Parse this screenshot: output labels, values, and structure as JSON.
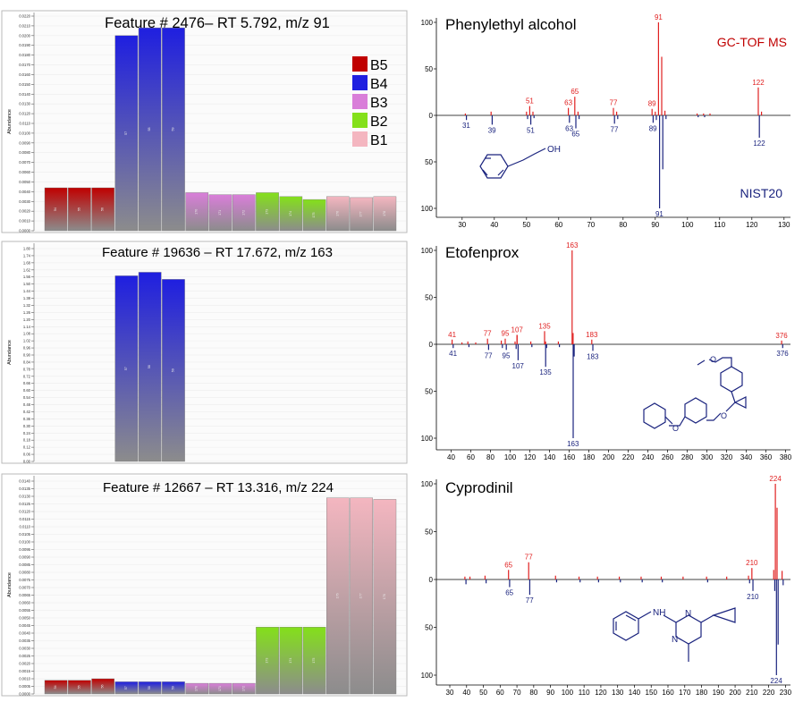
{
  "colors": {
    "B5": "#c00000",
    "B4": "#1f1fe0",
    "B3": "#d97ed9",
    "B2": "#84e01a",
    "B1": "#f4b6c0",
    "bar_bottom": "#8c8c8c",
    "gc_tof": "#e02020",
    "nist": "#1a237e",
    "structure": "#1a237e"
  },
  "legend": {
    "items": [
      {
        "name": "B5",
        "color": "#c00000"
      },
      {
        "name": "B4",
        "color": "#1f1fe0"
      },
      {
        "name": "B3",
        "color": "#d97ed9"
      },
      {
        "name": "B2",
        "color": "#84e01a"
      },
      {
        "name": "B1",
        "color": "#f4b6c0"
      }
    ]
  },
  "chart_data": [
    {
      "type": "bar",
      "title": "Feature # 2476– RT 5.792, m/z 91",
      "ylabel": "Abundance",
      "ylim": [
        0,
        0.022
      ],
      "ytick_step": 0.001,
      "ytick_decimals": 4,
      "groups": [
        "B5",
        "B5",
        "B5",
        "B4",
        "B4",
        "B4",
        "B3",
        "B3",
        "B3",
        "B2",
        "B2",
        "B2",
        "B1",
        "B1",
        "B1"
      ],
      "bar_labels": [
        "54",
        "55",
        "56",
        "57",
        "58",
        "59",
        "170",
        "171",
        "172",
        "173",
        "174",
        "175",
        "176",
        "177",
        "178"
      ],
      "values": [
        0.0044,
        0.0044,
        0.0044,
        0.02,
        0.0208,
        0.0208,
        0.0039,
        0.0037,
        0.0037,
        0.0039,
        0.0035,
        0.0032,
        0.0035,
        0.0034,
        0.0035
      ]
    },
    {
      "type": "bar",
      "title": "Feature # 19636 – RT 17.672, m/z 163",
      "ylabel": "Abundance",
      "ylim": [
        0,
        1.8
      ],
      "ytick_step": 0.06,
      "ytick_decimals": 2,
      "groups": [
        "B5",
        "B5",
        "B5",
        "B4",
        "B4",
        "B4",
        "B3",
        "B3",
        "B3",
        "B2",
        "B2",
        "B2",
        "B1",
        "B1",
        "B1"
      ],
      "bar_labels": [
        "54",
        "55",
        "56",
        "57",
        "58",
        "59",
        "170",
        "171",
        "172",
        "173",
        "174",
        "175",
        "176",
        "177",
        "178"
      ],
      "values": [
        0,
        0,
        0,
        1.57,
        1.6,
        1.54,
        0,
        0,
        0,
        0,
        0,
        0,
        0,
        0,
        0
      ]
    },
    {
      "type": "bar",
      "title": "Feature # 12667 – RT 13.316, m/z 224",
      "ylabel": "Abundance",
      "ylim": [
        0,
        0.014
      ],
      "ytick_step": 0.0005,
      "ytick_decimals": 4,
      "groups": [
        "B5",
        "B5",
        "B5",
        "B4",
        "B4",
        "B4",
        "B3",
        "B3",
        "B3",
        "B2",
        "B2",
        "B2",
        "B1",
        "B1",
        "B1"
      ],
      "bar_labels": [
        "54",
        "55",
        "56",
        "57",
        "58",
        "59",
        "170",
        "171",
        "172",
        "173",
        "174",
        "175",
        "176",
        "177",
        "178"
      ],
      "values": [
        0.0009,
        0.0009,
        0.001,
        0.0008,
        0.0008,
        0.0008,
        0.0007,
        0.0007,
        0.0007,
        0.0044,
        0.0044,
        0.0044,
        0.0129,
        0.0129,
        0.0128
      ]
    },
    {
      "type": "mirror_spectrum",
      "title": "Phenylethyl alcohol",
      "top_label": "GC-TOF MS",
      "bottom_label": "NIST20",
      "xlim": [
        22,
        132
      ],
      "xticks": [
        30,
        40,
        50,
        60,
        70,
        80,
        90,
        100,
        110,
        120,
        130
      ],
      "yticks": [
        100,
        50,
        0,
        50,
        100
      ],
      "top_peaks": [
        [
          91,
          100
        ],
        [
          92,
          63
        ],
        [
          122,
          30
        ],
        [
          65,
          20
        ],
        [
          51,
          10
        ],
        [
          63,
          8
        ],
        [
          77,
          8
        ],
        [
          89,
          7
        ],
        [
          39,
          4
        ],
        [
          31,
          2
        ],
        [
          50,
          4
        ],
        [
          52,
          4
        ],
        [
          66,
          4
        ],
        [
          78,
          4
        ],
        [
          90,
          4
        ],
        [
          93,
          5
        ],
        [
          123,
          4
        ],
        [
          103,
          2
        ],
        [
          105,
          2
        ],
        [
          107,
          2
        ]
      ],
      "bottom_peaks": [
        [
          91,
          100
        ],
        [
          92,
          58
        ],
        [
          122,
          24
        ],
        [
          65,
          14
        ],
        [
          51,
          10
        ],
        [
          63,
          8
        ],
        [
          77,
          9
        ],
        [
          89,
          8
        ],
        [
          39,
          10
        ],
        [
          31,
          5
        ],
        [
          50,
          4
        ],
        [
          52,
          3
        ],
        [
          66,
          4
        ],
        [
          78,
          4
        ],
        [
          90,
          5
        ],
        [
          93,
          4
        ],
        [
          103,
          2
        ],
        [
          105,
          2
        ]
      ],
      "top_labels": [
        "51",
        "63",
        "65",
        "77",
        "89",
        "91",
        "122"
      ],
      "bottom_labels": [
        "31",
        "39",
        "51",
        "63",
        "65",
        "77",
        "89",
        "91",
        "122"
      ]
    },
    {
      "type": "mirror_spectrum",
      "title": "Etofenprox",
      "xlim": [
        25,
        385
      ],
      "xticks": [
        40,
        60,
        80,
        100,
        120,
        140,
        160,
        180,
        200,
        220,
        240,
        260,
        280,
        300,
        320,
        340,
        360,
        380
      ],
      "yticks": [
        100,
        50,
        0,
        50,
        100
      ],
      "top_peaks": [
        [
          163,
          100
        ],
        [
          135,
          14
        ],
        [
          107,
          10
        ],
        [
          77,
          6
        ],
        [
          95,
          6
        ],
        [
          41,
          5
        ],
        [
          183,
          5
        ],
        [
          376,
          4
        ],
        [
          164,
          12
        ],
        [
          136,
          3
        ],
        [
          57,
          3
        ],
        [
          91,
          4
        ],
        [
          105,
          3
        ],
        [
          121,
          3
        ],
        [
          149,
          3
        ],
        [
          107,
          10
        ],
        [
          65,
          2
        ],
        [
          51,
          2
        ]
      ],
      "bottom_peaks": [
        [
          163,
          100
        ],
        [
          135,
          24
        ],
        [
          107,
          17
        ],
        [
          77,
          6
        ],
        [
          95,
          6
        ],
        [
          41,
          4
        ],
        [
          183,
          7
        ],
        [
          376,
          4
        ],
        [
          164,
          13
        ],
        [
          136,
          4
        ],
        [
          57,
          3
        ],
        [
          91,
          4
        ],
        [
          105,
          5
        ],
        [
          121,
          3
        ],
        [
          149,
          3
        ]
      ],
      "top_labels": [
        "41",
        "77",
        "95",
        "107",
        "135",
        "163",
        "183",
        "376"
      ],
      "bottom_labels": [
        "41",
        "77",
        "95",
        "107",
        "135",
        "163",
        "183",
        "376"
      ]
    },
    {
      "type": "mirror_spectrum",
      "title": "Cyprodinil",
      "xlim": [
        22,
        233
      ],
      "xticks": [
        30,
        40,
        50,
        60,
        70,
        80,
        90,
        100,
        110,
        120,
        130,
        140,
        150,
        160,
        170,
        180,
        190,
        200,
        210,
        220,
        230
      ],
      "yticks": [
        100,
        50,
        0,
        50,
        100
      ],
      "top_peaks": [
        [
          224,
          100
        ],
        [
          225,
          75
        ],
        [
          223,
          10
        ],
        [
          210,
          12
        ],
        [
          77,
          18
        ],
        [
          65,
          10
        ],
        [
          51,
          4
        ],
        [
          93,
          4
        ],
        [
          107,
          3
        ],
        [
          118,
          3
        ],
        [
          131,
          3
        ],
        [
          144,
          3
        ],
        [
          156,
          3
        ],
        [
          169,
          3
        ],
        [
          183,
          3
        ],
        [
          195,
          3
        ],
        [
          208,
          4
        ],
        [
          228,
          9
        ],
        [
          39,
          3
        ],
        [
          42,
          3
        ]
      ],
      "bottom_peaks": [
        [
          224,
          100
        ],
        [
          225,
          68
        ],
        [
          223,
          12
        ],
        [
          210,
          12
        ],
        [
          77,
          16
        ],
        [
          65,
          8
        ],
        [
          51,
          4
        ],
        [
          93,
          3
        ],
        [
          107,
          3
        ],
        [
          118,
          3
        ],
        [
          131,
          3
        ],
        [
          144,
          3
        ],
        [
          156,
          3
        ],
        [
          183,
          3
        ],
        [
          208,
          4
        ],
        [
          228,
          6
        ],
        [
          39,
          5
        ]
      ],
      "top_labels": [
        "65",
        "77",
        "210",
        "224"
      ],
      "bottom_labels": [
        "65",
        "77",
        "210",
        "224"
      ]
    }
  ],
  "structures": {
    "phenylethyl_alcohol_oh": "OH",
    "cyprodinil_nh": "NH",
    "cyprodinil_n1": "N",
    "cyprodinil_n2": "N",
    "etofenprox_o1": "O",
    "etofenprox_o2": "O",
    "etofenprox_o3": "O"
  }
}
